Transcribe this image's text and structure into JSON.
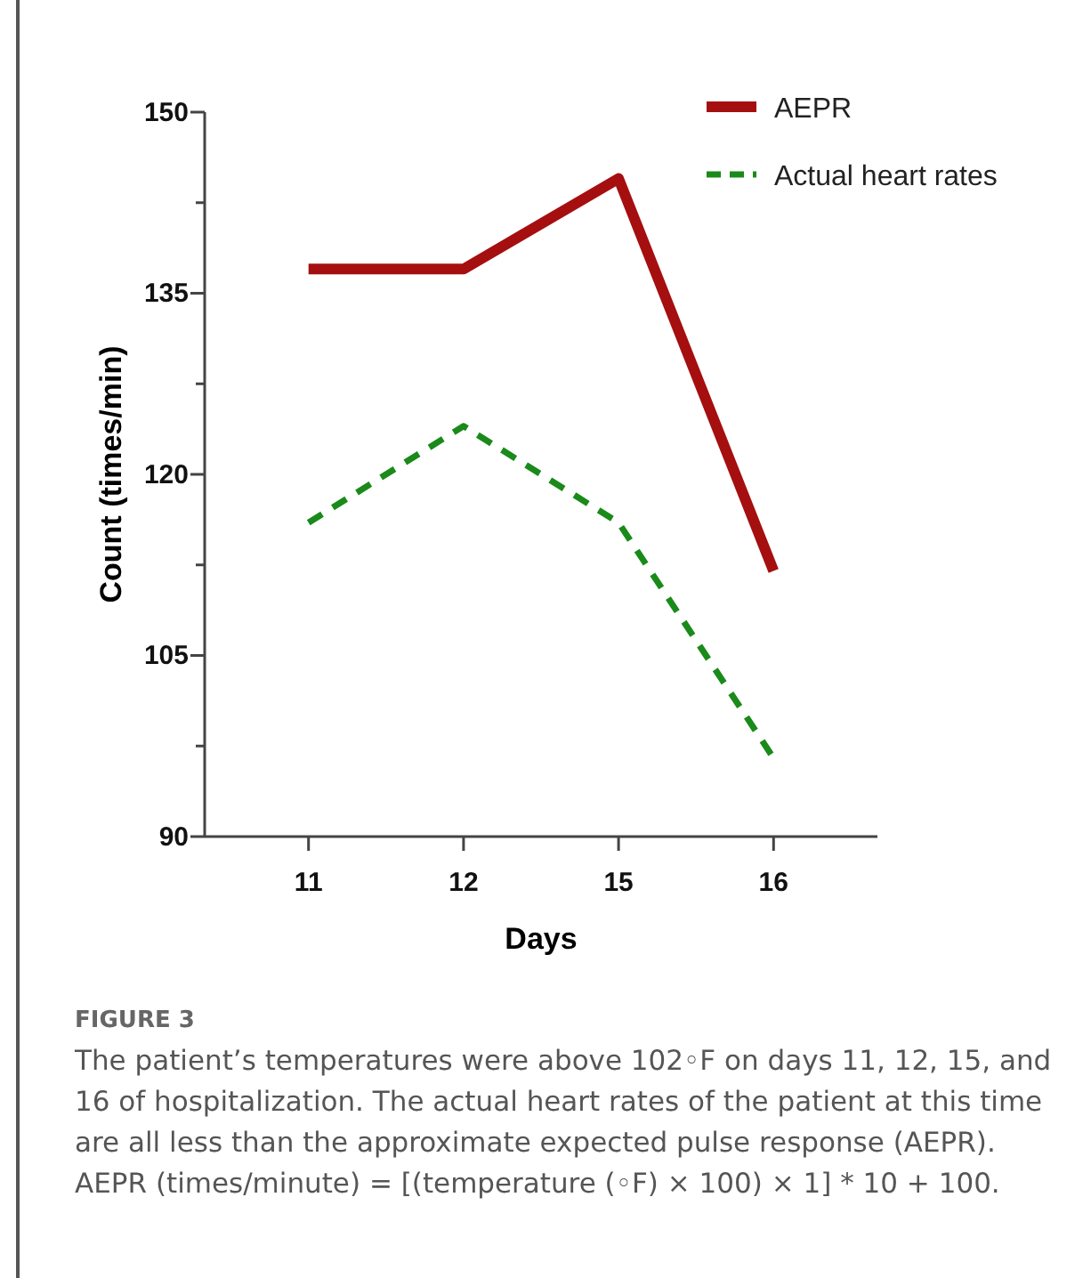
{
  "chart_data": {
    "type": "line",
    "xlabel": "Days",
    "ylabel": "Count (times/min)",
    "categories": [
      "11",
      "12",
      "15",
      "16"
    ],
    "series": [
      {
        "name": "AEPR",
        "color": "#a50f0f",
        "values": [
          137,
          137,
          144.5,
          112
        ],
        "line_style": "solid"
      },
      {
        "name": "Actual heart rates",
        "color": "#1a8a1a",
        "values": [
          116,
          124,
          116,
          96.5
        ],
        "line_style": "dashed"
      }
    ],
    "ylim": [
      90,
      150
    ],
    "yticks": [
      90,
      {
        "value": 97.5,
        "label": null
      },
      105,
      {
        "value": 112.5,
        "label": null
      },
      120,
      {
        "value": 127.5,
        "label": null
      },
      135,
      {
        "value": 142.5,
        "label": null
      },
      150
    ],
    "legend": "top right",
    "grid": false,
    "marker": "none",
    "annotations": [
      "FIGURE 3",
      "The patient’s temperatures were above 102◦F on days 11, 12, 15, and 16 of hospitalization. The actual heart rates of the patient at this time are all less than the approximate expected pulse response (AEPR). AEPR (times/minute) = [(temperature (◦F) × 100) × 1] * 10 + 100."
    ]
  }
}
